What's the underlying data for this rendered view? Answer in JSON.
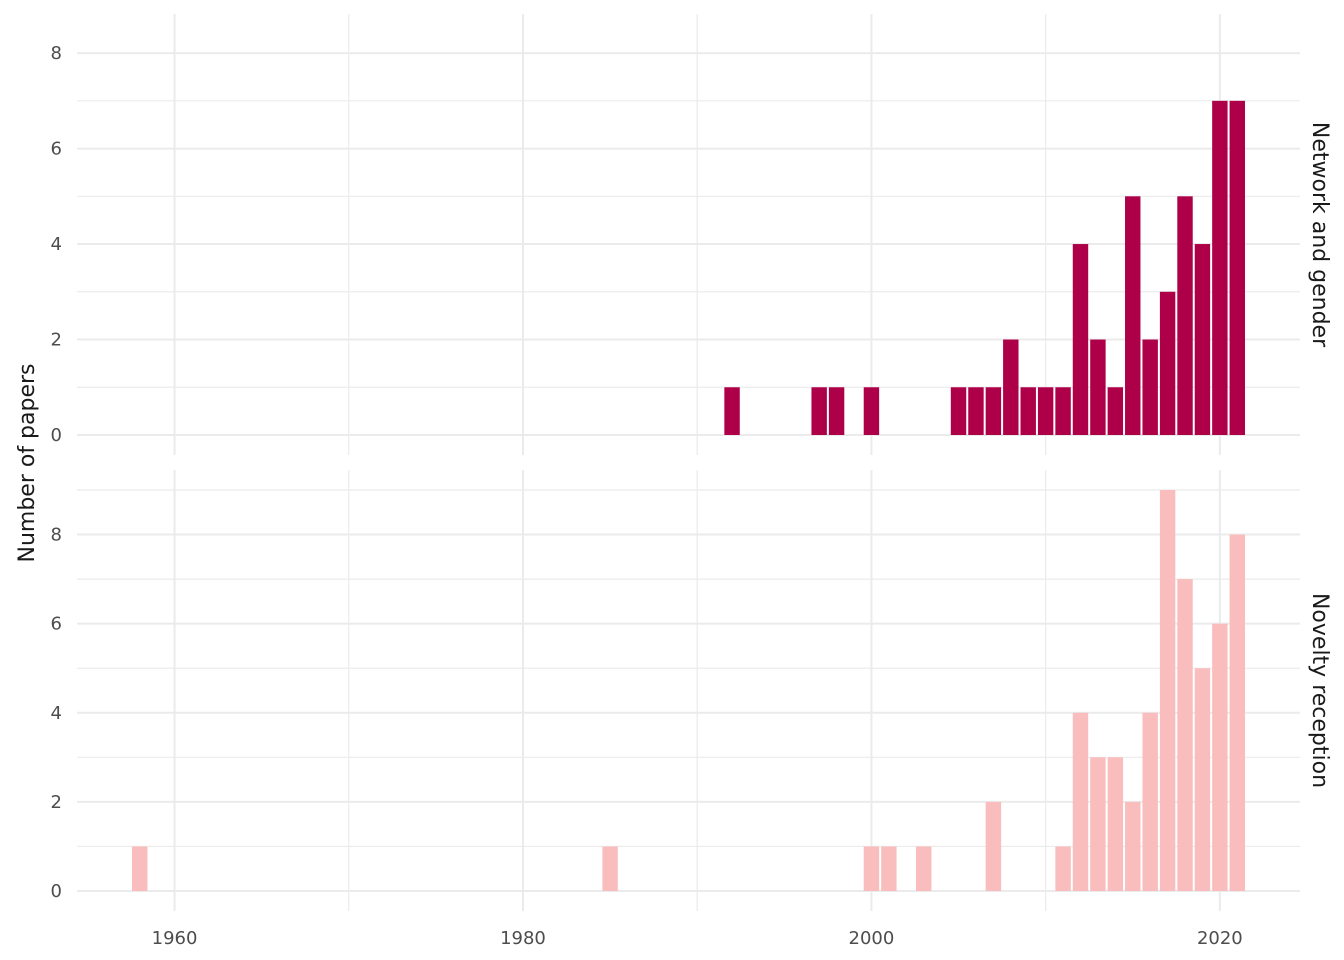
{
  "chart_data": {
    "type": "bar",
    "ylabel": "Number of papers",
    "xlabel": "",
    "xlim": [
      1954.4,
      2024.6
    ],
    "x_ticks": [
      1960,
      1980,
      2000,
      2020
    ],
    "x_minor": [
      1970,
      1990,
      2010
    ],
    "grid": true,
    "facets": [
      {
        "label": "Network and gender",
        "color": "#AD0048",
        "ylim": [
          0,
          8.4
        ],
        "y_ticks": [
          0,
          2,
          4,
          6,
          8
        ],
        "points": [
          {
            "x": 1992,
            "y": 1
          },
          {
            "x": 1997,
            "y": 1
          },
          {
            "x": 1998,
            "y": 1
          },
          {
            "x": 2000,
            "y": 1
          },
          {
            "x": 2005,
            "y": 1
          },
          {
            "x": 2006,
            "y": 1
          },
          {
            "x": 2007,
            "y": 1
          },
          {
            "x": 2008,
            "y": 2
          },
          {
            "x": 2009,
            "y": 1
          },
          {
            "x": 2010,
            "y": 1
          },
          {
            "x": 2011,
            "y": 1
          },
          {
            "x": 2012,
            "y": 4
          },
          {
            "x": 2013,
            "y": 2
          },
          {
            "x": 2014,
            "y": 1
          },
          {
            "x": 2015,
            "y": 5
          },
          {
            "x": 2016,
            "y": 2
          },
          {
            "x": 2017,
            "y": 3
          },
          {
            "x": 2018,
            "y": 5
          },
          {
            "x": 2019,
            "y": 4
          },
          {
            "x": 2020,
            "y": 7
          },
          {
            "x": 2021,
            "y": 7
          }
        ]
      },
      {
        "label": "Novelty reception",
        "color": "#F9BDBD",
        "ylim": [
          0,
          9
        ],
        "y_ticks": [
          0,
          2,
          4,
          6,
          8
        ],
        "points": [
          {
            "x": 1958,
            "y": 1
          },
          {
            "x": 1985,
            "y": 1
          },
          {
            "x": 2000,
            "y": 1
          },
          {
            "x": 2001,
            "y": 1
          },
          {
            "x": 2003,
            "y": 1
          },
          {
            "x": 2007,
            "y": 2
          },
          {
            "x": 2011,
            "y": 1
          },
          {
            "x": 2012,
            "y": 4
          },
          {
            "x": 2013,
            "y": 3
          },
          {
            "x": 2014,
            "y": 3
          },
          {
            "x": 2015,
            "y": 2
          },
          {
            "x": 2016,
            "y": 4
          },
          {
            "x": 2017,
            "y": 9
          },
          {
            "x": 2018,
            "y": 7
          },
          {
            "x": 2019,
            "y": 5
          },
          {
            "x": 2020,
            "y": 6
          },
          {
            "x": 2021,
            "y": 8
          }
        ]
      }
    ]
  }
}
